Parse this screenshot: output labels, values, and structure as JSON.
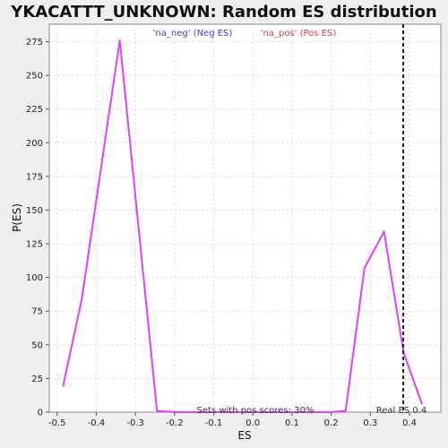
{
  "chart_data": {
    "type": "line",
    "title": "YKACATTT_UNKNOWN: Random ES distribution",
    "xlabel": "ES",
    "ylabel": "P(ES)",
    "xlim": [
      -0.52,
      0.48
    ],
    "ylim": [
      0,
      288
    ],
    "xticks": [
      -0.5,
      -0.4,
      -0.3,
      -0.2,
      -0.1,
      0.0,
      0.1,
      0.2,
      0.3,
      0.4
    ],
    "xtick_labels": [
      "-0.5",
      "-0.4",
      "-0.3",
      "-0.2",
      "-0.1",
      "0.0",
      "0.1",
      "0.2",
      "0.3",
      "0.4"
    ],
    "yticks": [
      0,
      25,
      50,
      75,
      100,
      125,
      150,
      175,
      200,
      225,
      250,
      275
    ],
    "ytick_labels": [
      "0",
      "25",
      "50",
      "75",
      "100",
      "125",
      "150",
      "175",
      "200",
      "225",
      "250",
      "275"
    ],
    "grid": true,
    "legend": [
      {
        "label": "'na_neg' (Neg ES)",
        "color": "#3b3bd6"
      },
      {
        "label": "'na_pos' (Pos ES)",
        "color": "#e03b3b"
      }
    ],
    "series": [
      {
        "color": "#e040fb",
        "x": [
          -0.485,
          -0.437,
          -0.34,
          -0.245,
          -0.2,
          -0.14,
          0.0,
          0.14,
          0.2,
          0.237,
          0.285,
          0.335,
          0.385,
          0.432
        ],
        "y": [
          19,
          84,
          276,
          1,
          0,
          0,
          0,
          0,
          0,
          1,
          107,
          134,
          44,
          6
        ]
      }
    ],
    "real_es": 0.384,
    "annotations": {
      "sets_text": "Sets with pos scores: 30%",
      "real_es_text": "Real ES 0.4"
    }
  },
  "colors": {
    "background": "#efefef",
    "plot_bg": "#ffffff",
    "line": "#e040fb",
    "grid": "#d8d8d8"
  }
}
